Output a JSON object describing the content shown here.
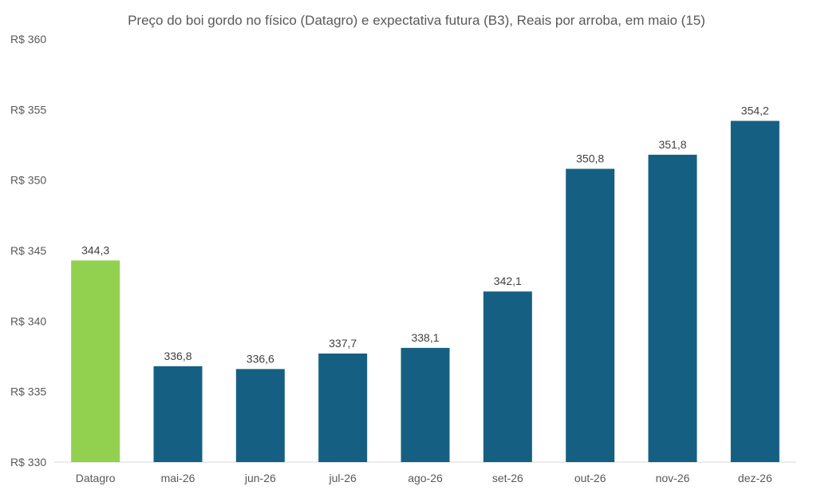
{
  "chart_data": {
    "type": "bar",
    "title": "Preço do boi gordo no físico (Datagro)  e expectativa futura (B3), Reais por arroba, em maio (15)",
    "categories": [
      "Datagro",
      "mai-26",
      "jun-26",
      "jul-26",
      "ago-26",
      "set-26",
      "out-26",
      "nov-26",
      "dez-26"
    ],
    "values": [
      344.3,
      336.8,
      336.6,
      337.7,
      338.1,
      342.1,
      350.8,
      351.8,
      354.2
    ],
    "value_labels": [
      "344,3",
      "336,8",
      "336,6",
      "337,7",
      "338,1",
      "342,1",
      "350,8",
      "351,8",
      "354,2"
    ],
    "ylim": [
      330,
      360
    ],
    "y_ticks": [
      330,
      335,
      340,
      345,
      350,
      355,
      360
    ],
    "y_tick_labels": [
      "R$ 330",
      "R$ 335",
      "R$ 340",
      "R$ 345",
      "R$ 350",
      "R$ 355",
      "R$ 360"
    ],
    "xlabel": "",
    "ylabel": "",
    "grid": false,
    "colors": {
      "highlight": "#92D050",
      "bars": "#156082",
      "axis": "#D9D9D9",
      "text": "#595959",
      "data_label": "#404040"
    },
    "highlight_index": 0
  }
}
